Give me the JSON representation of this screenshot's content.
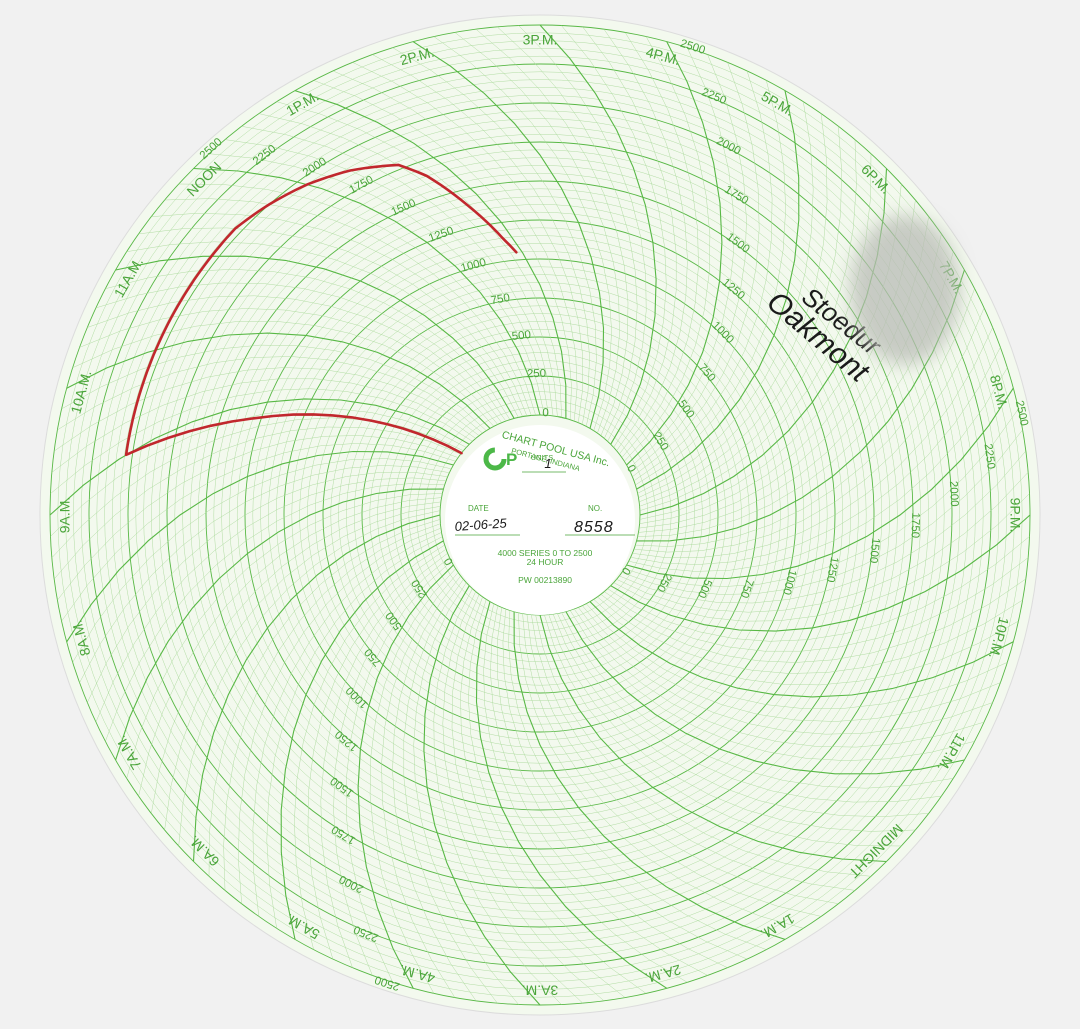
{
  "chart_data": {
    "type": "line",
    "chart_kind": "circular 24-hour recorder chart",
    "title": "",
    "time_labels": [
      "MIDNIGHT",
      "1A.M.",
      "2A.M.",
      "3A.M.",
      "4A.M.",
      "5A.M.",
      "6A.M.",
      "7A.M.",
      "8A.M.",
      "9A.M.",
      "10A.M.",
      "11A.M.",
      "NOON",
      "1P.M.",
      "2P.M.",
      "3P.M.",
      "4P.M.",
      "5P.M.",
      "6P.M.",
      "7P.M.",
      "8P.M.",
      "9P.M.",
      "10P.M.",
      "11P.M."
    ],
    "scale_labels": [
      "0",
      "250",
      "500",
      "750",
      "1000",
      "1250",
      "1500",
      "1750",
      "2000",
      "2250",
      "2500"
    ],
    "ylim": [
      0,
      2500
    ],
    "grid": true,
    "colors": {
      "grid": "#58b845",
      "grid_light": "#a9d99a",
      "text": "#4aa53a",
      "paper": "#f3f9ee",
      "trace": "#c1272d",
      "ink": "#1a1a1a",
      "logo": "#4cb848"
    },
    "series": [
      {
        "x": [
          "8:33",
          "8:40",
          "8:48",
          "9:00",
          "9:20",
          "9:40",
          "10:00",
          "10:20",
          "10:40",
          "11:00",
          "11:20",
          "11:40",
          "12:00",
          "12:20",
          "12:40",
          "12:45",
          "12:48",
          "12:52",
          "12:55"
        ],
        "values": [
          0,
          600,
          1300,
          2040,
          2040,
          2040,
          2040,
          2040,
          2040,
          2040,
          2040,
          2000,
          1950,
          1880,
          1780,
          1650,
          1400,
          1150,
          1050
        ]
      }
    ]
  },
  "center": {
    "brand_line1": "CHART POOL USA Inc.",
    "brand_line2": "PORTAGE, INDIANA",
    "units_label": "UNITS",
    "units_value": "1",
    "date_label": "DATE",
    "date_value": "02-06-25",
    "no_label": "NO.",
    "no_value": "8558",
    "series_line1": "4000 SERIES  0 TO 2500",
    "series_line2": "24 HOUR",
    "part_no": "PW 00213890"
  },
  "handwriting": {
    "line1": "Stoedur",
    "line2": "Oakmont"
  }
}
